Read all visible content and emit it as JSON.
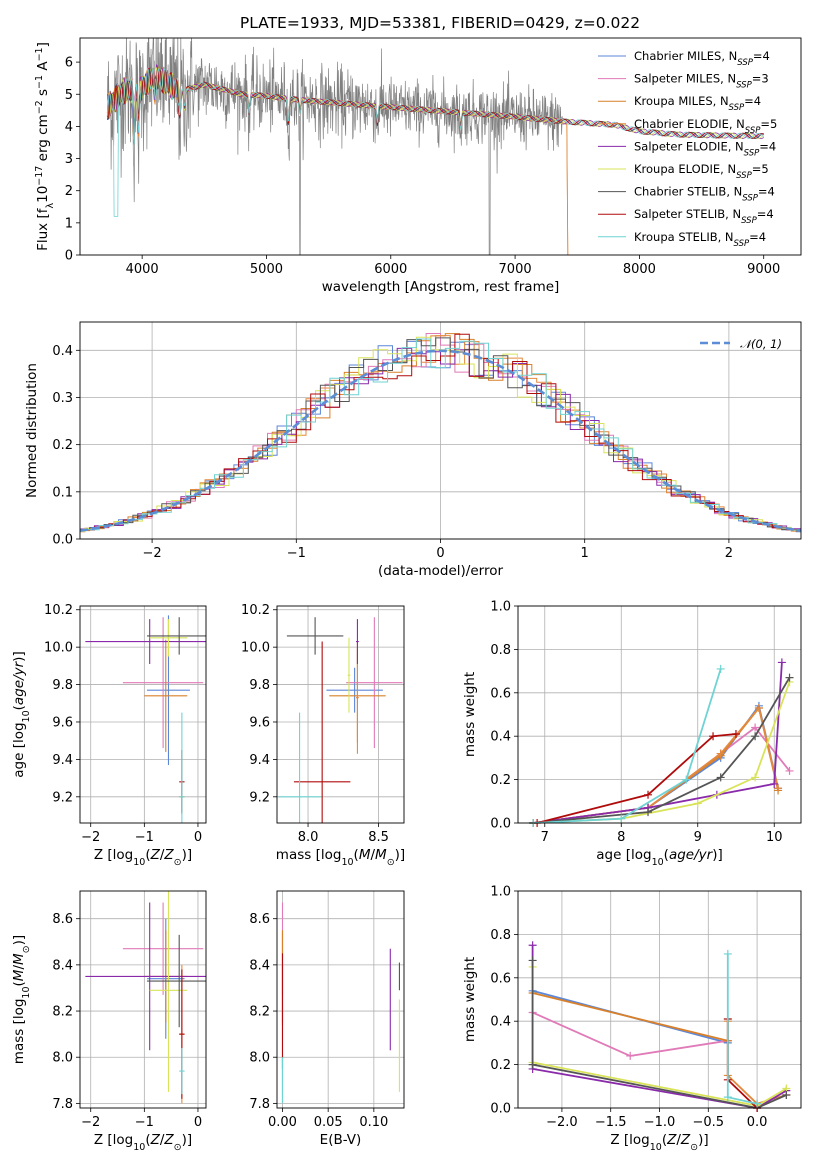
{
  "title": "PLATE=1933, MJD=53381, FIBERID=0429, z=0.022",
  "colors": {
    "Chabrier MILES": "#5b87d8",
    "Salpeter MILES": "#e07ab8",
    "Kroupa MILES": "#d9802a",
    "Chabrier ELODIE": "#e3893d",
    "Salpeter ELODIE": "#8a2aab",
    "Kroupa ELODIE": "#d9e35a",
    "Chabrier STELIB": "#555555",
    "Salpeter STELIB": "#b00b0b",
    "Kroupa STELIB": "#6fd3d3",
    "data": "#808080",
    "gauss": "#5b8ed6"
  },
  "chart_data": [
    {
      "id": "spectrum",
      "type": "line",
      "title": "PLATE=1933, MJD=53381, FIBERID=0429, z=0.022",
      "xlabel": "wavelength [Angstrom, rest frame]",
      "ylabel": "Flux [f_λ 10^-17 erg cm^-2 s^-1 A^-1]",
      "xlim": [
        3500,
        9300
      ],
      "ylim": [
        0,
        6.75
      ],
      "xticks": [
        4000,
        5000,
        6000,
        7000,
        8000,
        9000
      ],
      "yticks": [
        0,
        1,
        2,
        3,
        4,
        5,
        6
      ],
      "legend_position": "upper right",
      "grid": false,
      "data_range": [
        3720,
        7380
      ],
      "continuum": [
        [
          3720,
          4.6
        ],
        [
          3850,
          5.1
        ],
        [
          4000,
          5.2
        ],
        [
          4100,
          5.6
        ],
        [
          4300,
          5.1
        ],
        [
          4500,
          5.3
        ],
        [
          4800,
          5.0
        ],
        [
          5000,
          4.95
        ],
        [
          5200,
          4.85
        ],
        [
          5500,
          4.75
        ],
        [
          6000,
          4.6
        ],
        [
          6500,
          4.45
        ],
        [
          7000,
          4.3
        ],
        [
          7400,
          4.15
        ],
        [
          7800,
          4.05
        ],
        [
          8000,
          3.85
        ],
        [
          8300,
          3.75
        ],
        [
          8600,
          3.72
        ],
        [
          9000,
          3.7
        ]
      ],
      "series": [
        {
          "name": "Chabrier MILES",
          "n_ssp": "4"
        },
        {
          "name": "Salpeter MILES",
          "n_ssp": "3"
        },
        {
          "name": "Kroupa MILES",
          "n_ssp": "4"
        },
        {
          "name": "Chabrier ELODIE",
          "n_ssp": "5"
        },
        {
          "name": "Salpeter ELODIE",
          "n_ssp": "4"
        },
        {
          "name": "Kroupa ELODIE",
          "n_ssp": "5"
        },
        {
          "name": "Chabrier STELIB",
          "n_ssp": "4"
        },
        {
          "name": "Salpeter STELIB",
          "n_ssp": "4"
        },
        {
          "name": "Kroupa STELIB",
          "n_ssp": "4"
        }
      ]
    },
    {
      "id": "residuals",
      "type": "step",
      "xlabel": "(data-model)/error",
      "ylabel": "Normed distribution",
      "xlim": [
        -2.5,
        2.5
      ],
      "ylim": [
        0,
        0.46
      ],
      "xticks": [
        -2,
        -1,
        0,
        1,
        2
      ],
      "yticks": [
        0.0,
        0.1,
        0.2,
        0.3,
        0.4
      ],
      "grid": true,
      "legend": "𝒩(0, 1)",
      "bin_width": 0.1
    },
    {
      "id": "age_vs_Z",
      "type": "errorbar",
      "xlabel": "Z [log10(Z/Z⊙)]",
      "ylabel": "age [log10(age/yr)]",
      "xlim": [
        -2.2,
        0.15
      ],
      "ylim": [
        9.06,
        10.22
      ],
      "xticks": [
        -2,
        -1,
        0
      ],
      "yticks": [
        9.2,
        9.4,
        9.6,
        9.8,
        10.0,
        10.2
      ],
      "grid": true,
      "points": [
        {
          "s": "Chabrier MILES",
          "x": -0.55,
          "xerr": 0.4,
          "y": 9.77,
          "yerr": 0.4
        },
        {
          "s": "Salpeter MILES",
          "x": -0.65,
          "xerr": 0.75,
          "y": 9.81,
          "yerr": 0.35
        },
        {
          "s": "Kroupa MILES",
          "x": -0.6,
          "xerr": 0.4,
          "y": 9.74,
          "yerr": 0.3
        },
        {
          "s": "Chabrier ELODIE",
          "x": -0.3,
          "xerr": 0.05,
          "y": 9.2,
          "yerr": 0.08
        },
        {
          "s": "Salpeter ELODIE",
          "x": -0.9,
          "xerr": 1.2,
          "y": 10.03,
          "yerr": 0.12
        },
        {
          "s": "Kroupa ELODIE",
          "x": -0.55,
          "xerr": 0.35,
          "y": 10.05,
          "yerr": 0.1
        },
        {
          "s": "Chabrier STELIB",
          "x": -0.35,
          "xerr": 0.6,
          "y": 10.06,
          "yerr": 0.1
        },
        {
          "s": "Salpeter STELIB",
          "x": -0.3,
          "xerr": 0.05,
          "y": 9.28,
          "yerr": 0.17
        },
        {
          "s": "Kroupa STELIB",
          "x": -0.3,
          "xerr": 0.05,
          "y": 9.2,
          "yerr": 0.45
        }
      ]
    },
    {
      "id": "age_vs_mass",
      "type": "errorbar",
      "xlabel": "mass [log10(M/M⊙)]",
      "ylabel": "",
      "xlim": [
        7.78,
        8.68
      ],
      "ylim": [
        9.06,
        10.22
      ],
      "xticks": [
        8.0,
        8.5
      ],
      "yticks": [
        9.2,
        9.4,
        9.6,
        9.8,
        10.0,
        10.2
      ],
      "grid": true,
      "points": [
        {
          "s": "Chabrier MILES",
          "x": 8.33,
          "xerr": 0.2,
          "y": 9.77,
          "yerr": 0.12
        },
        {
          "s": "Salpeter MILES",
          "x": 8.47,
          "xerr": 0.2,
          "y": 9.81,
          "yerr": 0.35
        },
        {
          "s": "Kroupa MILES",
          "x": 8.35,
          "xerr": 0.2,
          "y": 9.74,
          "yerr": 0.25
        },
        {
          "s": "Chabrier ELODIE",
          "x": 8.35,
          "xerr": 0.01,
          "y": 9.73,
          "yerr": 0.3
        },
        {
          "s": "Salpeter ELODIE",
          "x": 8.35,
          "xerr": 0.01,
          "y": 10.03,
          "yerr": 0.12
        },
        {
          "s": "Kroupa ELODIE",
          "x": 8.29,
          "xerr": 0.01,
          "y": 9.85,
          "yerr": 0.2
        },
        {
          "s": "Chabrier STELIB",
          "x": 8.05,
          "xerr": 0.2,
          "y": 10.06,
          "yerr": 0.1
        },
        {
          "s": "Salpeter STELIB",
          "x": 8.1,
          "xerr": 0.2,
          "y": 9.28,
          "yerr": 0.75
        },
        {
          "s": "Kroupa STELIB",
          "x": 7.94,
          "xerr": 0.15,
          "y": 9.2,
          "yerr": 0.45
        }
      ]
    },
    {
      "id": "weight_vs_age",
      "type": "line",
      "xlabel": "age [log10(age/yr)]",
      "ylabel": "mass weight",
      "xlim": [
        6.65,
        10.35
      ],
      "ylim": [
        0,
        1.0
      ],
      "xticks": [
        7,
        8,
        9,
        10
      ],
      "yticks": [
        0.0,
        0.2,
        0.4,
        0.6,
        0.8,
        1.0
      ],
      "grid": true,
      "series": [
        {
          "s": "Chabrier MILES",
          "x": [
            6.85,
            8.35,
            9.3,
            9.8,
            10.05
          ],
          "y": [
            0.0,
            0.07,
            0.3,
            0.54,
            0.16
          ]
        },
        {
          "s": "Salpeter MILES",
          "x": [
            6.85,
            8.35,
            9.3,
            9.75,
            10.2
          ],
          "y": [
            0.0,
            0.07,
            0.32,
            0.44,
            0.24
          ]
        },
        {
          "s": "Kroupa MILES",
          "x": [
            6.85,
            8.35,
            9.3,
            9.8,
            10.05
          ],
          "y": [
            0.0,
            0.07,
            0.31,
            0.53,
            0.15
          ]
        },
        {
          "s": "Chabrier ELODIE",
          "x": [
            6.85,
            8.35,
            9.3,
            9.8,
            10.05
          ],
          "y": [
            0.0,
            0.07,
            0.32,
            0.53,
            0.16
          ]
        },
        {
          "s": "Salpeter ELODIE",
          "x": [
            6.85,
            8.35,
            9.25,
            10.0,
            10.1
          ],
          "y": [
            0.0,
            0.07,
            0.13,
            0.18,
            0.74
          ]
        },
        {
          "s": "Kroupa ELODIE",
          "x": [
            6.85,
            8.0,
            9.0,
            9.75,
            10.2
          ],
          "y": [
            0.0,
            0.02,
            0.09,
            0.21,
            0.65
          ]
        },
        {
          "s": "Chabrier STELIB",
          "x": [
            6.85,
            8.35,
            9.3,
            9.75,
            10.2
          ],
          "y": [
            0.0,
            0.05,
            0.21,
            0.4,
            0.67
          ]
        },
        {
          "s": "Salpeter STELIB",
          "x": [
            6.9,
            8.35,
            9.2,
            9.5
          ],
          "y": [
            0.0,
            0.13,
            0.4,
            0.41
          ]
        },
        {
          "s": "Kroupa STELIB",
          "x": [
            6.85,
            8.0,
            8.85,
            9.3
          ],
          "y": [
            0.0,
            0.02,
            0.2,
            0.71
          ]
        }
      ]
    },
    {
      "id": "mass_vs_Z",
      "type": "errorbar",
      "xlabel": "Z [log10(Z/Z⊙)]",
      "ylabel": "mass [log10(M/M⊙)]",
      "xlim": [
        -2.2,
        0.15
      ],
      "ylim": [
        7.78,
        8.72
      ],
      "xticks": [
        -2,
        -1,
        0
      ],
      "yticks": [
        7.8,
        8.0,
        8.2,
        8.4,
        8.6
      ],
      "grid": true,
      "points": [
        {
          "s": "Chabrier MILES",
          "x": -0.6,
          "xerr": 0.35,
          "y": 8.34,
          "yerr": 0.26
        },
        {
          "s": "Salpeter MILES",
          "x": -0.65,
          "xerr": 0.75,
          "y": 8.47,
          "yerr": 0.2
        },
        {
          "s": "Kroupa MILES",
          "x": -0.6,
          "xerr": 0.4,
          "y": 8.35,
          "yerr": 0.2
        },
        {
          "s": "Chabrier ELODIE",
          "x": -0.3,
          "xerr": 0.05,
          "y": 8.1,
          "yerr": 0.3
        },
        {
          "s": "Salpeter ELODIE",
          "x": -0.9,
          "xerr": 1.2,
          "y": 8.35,
          "yerr": 0.32
        },
        {
          "s": "Kroupa ELODIE",
          "x": -0.55,
          "xerr": 0.35,
          "y": 8.29,
          "yerr": 0.44
        },
        {
          "s": "Chabrier STELIB",
          "x": -0.35,
          "xerr": 0.6,
          "y": 8.33,
          "yerr": 0.2
        },
        {
          "s": "Salpeter STELIB",
          "x": -0.3,
          "xerr": 0.05,
          "y": 8.1,
          "yerr": 0.28
        },
        {
          "s": "Kroupa STELIB",
          "x": -0.3,
          "xerr": 0.05,
          "y": 7.94,
          "yerr": 0.1
        }
      ]
    },
    {
      "id": "mass_vs_ebv",
      "type": "errorbar",
      "xlabel": "E(B-V)",
      "ylabel": "",
      "xlim": [
        -0.006,
        0.133
      ],
      "ylim": [
        7.78,
        8.72
      ],
      "xticks": [
        0.0,
        0.05,
        0.1
      ],
      "yticks": [
        7.8,
        8.0,
        8.2,
        8.4,
        8.6
      ],
      "grid": true,
      "points": [
        {
          "s": "Chabrier MILES",
          "x": 0.0,
          "xerr": 0.0,
          "y": 8.34,
          "yerr": 0.2
        },
        {
          "s": "Salpeter MILES",
          "x": 0.0,
          "xerr": 0.0,
          "y": 8.47,
          "yerr": 0.2
        },
        {
          "s": "Kroupa MILES",
          "x": 0.0,
          "xerr": 0.0,
          "y": 8.35,
          "yerr": 0.2
        },
        {
          "s": "Chabrier ELODIE",
          "x": 0.0,
          "xerr": 0.0,
          "y": 8.1,
          "yerr": 0.3
        },
        {
          "s": "Salpeter ELODIE",
          "x": 0.118,
          "xerr": 0.0,
          "y": 8.25,
          "yerr": 0.22
        },
        {
          "s": "Kroupa ELODIE",
          "x": 0.128,
          "xerr": 0.0,
          "y": 8.05,
          "yerr": 0.2
        },
        {
          "s": "Chabrier STELIB",
          "x": 0.128,
          "xerr": 0.0,
          "y": 8.35,
          "yerr": 0.06
        },
        {
          "s": "Salpeter STELIB",
          "x": 0.0,
          "xerr": 0.0,
          "y": 8.2,
          "yerr": 0.25
        },
        {
          "s": "Kroupa STELIB",
          "x": 0.0,
          "xerr": 0.0,
          "y": 7.9,
          "yerr": 0.1
        }
      ]
    },
    {
      "id": "weight_vs_Z",
      "type": "line",
      "xlabel": "Z [log10(Z/Z⊙)]",
      "ylabel": "mass weight",
      "xlim": [
        -2.45,
        0.45
      ],
      "ylim": [
        0,
        1.0
      ],
      "xticks": [
        -2.0,
        -1.5,
        -1.0,
        -0.5,
        0.0
      ],
      "yticks": [
        0.0,
        0.2,
        0.4,
        0.6,
        0.8,
        1.0
      ],
      "grid": true,
      "series": [
        {
          "s": "Chabrier MILES",
          "x": [
            -2.3,
            -0.3
          ],
          "y": [
            0.54,
            0.3
          ]
        },
        {
          "s": "Salpeter MILES",
          "x": [
            -2.3,
            -1.3,
            -0.3
          ],
          "y": [
            0.44,
            0.24,
            0.31
          ]
        },
        {
          "s": "Kroupa MILES",
          "x": [
            -2.3,
            -0.3
          ],
          "y": [
            0.53,
            0.31
          ]
        },
        {
          "s": "Chabrier ELODIE",
          "x": [
            -0.3,
            -0.3,
            0.0,
            0.3
          ],
          "y": [
            0.4,
            0.15,
            0.02,
            0.06
          ]
        },
        {
          "s": "Salpeter ELODIE",
          "x": [
            -2.3,
            -2.3,
            0.0,
            0.3
          ],
          "y": [
            0.75,
            0.18,
            0.0,
            0.08
          ]
        },
        {
          "s": "Kroupa ELODIE",
          "x": [
            -2.3,
            -2.3,
            0.0,
            0.3
          ],
          "y": [
            0.65,
            0.21,
            0.01,
            0.09
          ]
        },
        {
          "s": "Chabrier STELIB",
          "x": [
            -2.3,
            -2.3,
            0.0,
            0.3
          ],
          "y": [
            0.68,
            0.2,
            0.0,
            0.06
          ]
        },
        {
          "s": "Salpeter STELIB",
          "x": [
            -0.3,
            -0.3,
            0.0
          ],
          "y": [
            0.41,
            0.13,
            0.0
          ]
        },
        {
          "s": "Kroupa STELIB",
          "x": [
            -0.3,
            -0.3,
            0.0
          ],
          "y": [
            0.71,
            0.05,
            0.02
          ]
        }
      ]
    }
  ]
}
